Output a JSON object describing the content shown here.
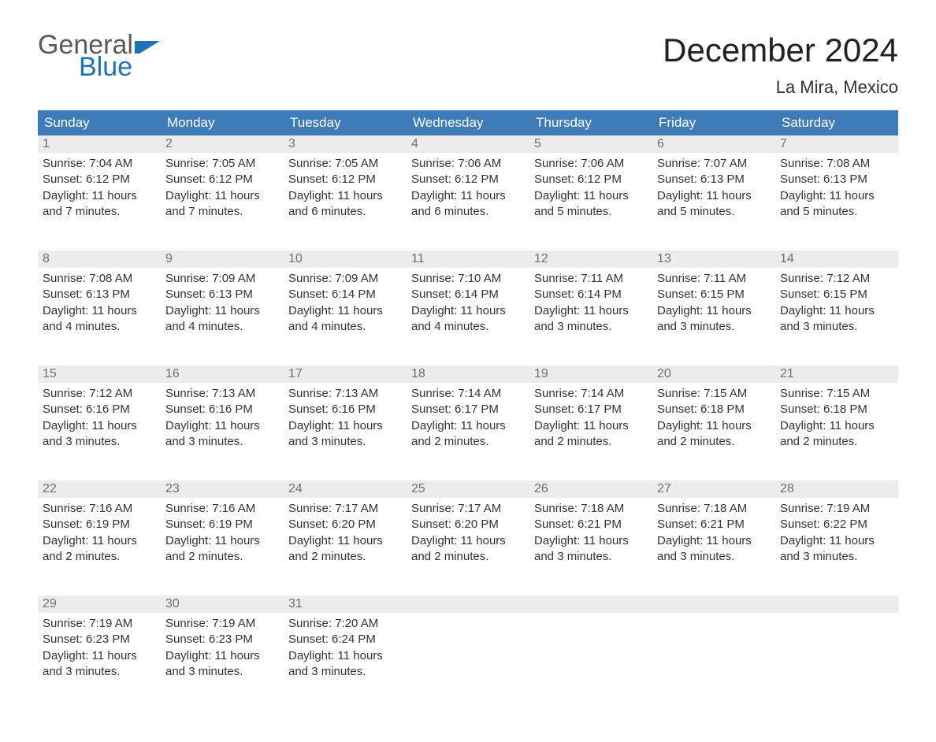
{
  "logo": {
    "general": "General",
    "blue": "Blue"
  },
  "title": "December 2024",
  "location": "La Mira, Mexico",
  "colors": {
    "header_bg": "#3d7cb8",
    "header_text": "#ffffff",
    "daynum_bg": "#ececec",
    "daynum_border": "#3d7cb8",
    "body_text": "#333333",
    "logo_gray": "#5a5a5a",
    "logo_blue": "#1d72b8",
    "page_bg": "#ffffff"
  },
  "columns": [
    "Sunday",
    "Monday",
    "Tuesday",
    "Wednesday",
    "Thursday",
    "Friday",
    "Saturday"
  ],
  "weeks": [
    [
      {
        "n": "1",
        "sunrise": "7:04 AM",
        "sunset": "6:12 PM",
        "hours": "11",
        "minutes": "7"
      },
      {
        "n": "2",
        "sunrise": "7:05 AM",
        "sunset": "6:12 PM",
        "hours": "11",
        "minutes": "7"
      },
      {
        "n": "3",
        "sunrise": "7:05 AM",
        "sunset": "6:12 PM",
        "hours": "11",
        "minutes": "6"
      },
      {
        "n": "4",
        "sunrise": "7:06 AM",
        "sunset": "6:12 PM",
        "hours": "11",
        "minutes": "6"
      },
      {
        "n": "5",
        "sunrise": "7:06 AM",
        "sunset": "6:12 PM",
        "hours": "11",
        "minutes": "5"
      },
      {
        "n": "6",
        "sunrise": "7:07 AM",
        "sunset": "6:13 PM",
        "hours": "11",
        "minutes": "5"
      },
      {
        "n": "7",
        "sunrise": "7:08 AM",
        "sunset": "6:13 PM",
        "hours": "11",
        "minutes": "5"
      }
    ],
    [
      {
        "n": "8",
        "sunrise": "7:08 AM",
        "sunset": "6:13 PM",
        "hours": "11",
        "minutes": "4"
      },
      {
        "n": "9",
        "sunrise": "7:09 AM",
        "sunset": "6:13 PM",
        "hours": "11",
        "minutes": "4"
      },
      {
        "n": "10",
        "sunrise": "7:09 AM",
        "sunset": "6:14 PM",
        "hours": "11",
        "minutes": "4"
      },
      {
        "n": "11",
        "sunrise": "7:10 AM",
        "sunset": "6:14 PM",
        "hours": "11",
        "minutes": "4"
      },
      {
        "n": "12",
        "sunrise": "7:11 AM",
        "sunset": "6:14 PM",
        "hours": "11",
        "minutes": "3"
      },
      {
        "n": "13",
        "sunrise": "7:11 AM",
        "sunset": "6:15 PM",
        "hours": "11",
        "minutes": "3"
      },
      {
        "n": "14",
        "sunrise": "7:12 AM",
        "sunset": "6:15 PM",
        "hours": "11",
        "minutes": "3"
      }
    ],
    [
      {
        "n": "15",
        "sunrise": "7:12 AM",
        "sunset": "6:16 PM",
        "hours": "11",
        "minutes": "3"
      },
      {
        "n": "16",
        "sunrise": "7:13 AM",
        "sunset": "6:16 PM",
        "hours": "11",
        "minutes": "3"
      },
      {
        "n": "17",
        "sunrise": "7:13 AM",
        "sunset": "6:16 PM",
        "hours": "11",
        "minutes": "3"
      },
      {
        "n": "18",
        "sunrise": "7:14 AM",
        "sunset": "6:17 PM",
        "hours": "11",
        "minutes": "2"
      },
      {
        "n": "19",
        "sunrise": "7:14 AM",
        "sunset": "6:17 PM",
        "hours": "11",
        "minutes": "2"
      },
      {
        "n": "20",
        "sunrise": "7:15 AM",
        "sunset": "6:18 PM",
        "hours": "11",
        "minutes": "2"
      },
      {
        "n": "21",
        "sunrise": "7:15 AM",
        "sunset": "6:18 PM",
        "hours": "11",
        "minutes": "2"
      }
    ],
    [
      {
        "n": "22",
        "sunrise": "7:16 AM",
        "sunset": "6:19 PM",
        "hours": "11",
        "minutes": "2"
      },
      {
        "n": "23",
        "sunrise": "7:16 AM",
        "sunset": "6:19 PM",
        "hours": "11",
        "minutes": "2"
      },
      {
        "n": "24",
        "sunrise": "7:17 AM",
        "sunset": "6:20 PM",
        "hours": "11",
        "minutes": "2"
      },
      {
        "n": "25",
        "sunrise": "7:17 AM",
        "sunset": "6:20 PM",
        "hours": "11",
        "minutes": "2"
      },
      {
        "n": "26",
        "sunrise": "7:18 AM",
        "sunset": "6:21 PM",
        "hours": "11",
        "minutes": "3"
      },
      {
        "n": "27",
        "sunrise": "7:18 AM",
        "sunset": "6:21 PM",
        "hours": "11",
        "minutes": "3"
      },
      {
        "n": "28",
        "sunrise": "7:19 AM",
        "sunset": "6:22 PM",
        "hours": "11",
        "minutes": "3"
      }
    ],
    [
      {
        "n": "29",
        "sunrise": "7:19 AM",
        "sunset": "6:23 PM",
        "hours": "11",
        "minutes": "3"
      },
      {
        "n": "30",
        "sunrise": "7:19 AM",
        "sunset": "6:23 PM",
        "hours": "11",
        "minutes": "3"
      },
      {
        "n": "31",
        "sunrise": "7:20 AM",
        "sunset": "6:24 PM",
        "hours": "11",
        "minutes": "3"
      },
      null,
      null,
      null,
      null
    ]
  ],
  "labels": {
    "sunrise_prefix": "Sunrise: ",
    "sunset_prefix": "Sunset: ",
    "daylight_prefix": "Daylight: ",
    "hours_word": " hours",
    "and_word": "and ",
    "minutes_word": " minutes."
  }
}
